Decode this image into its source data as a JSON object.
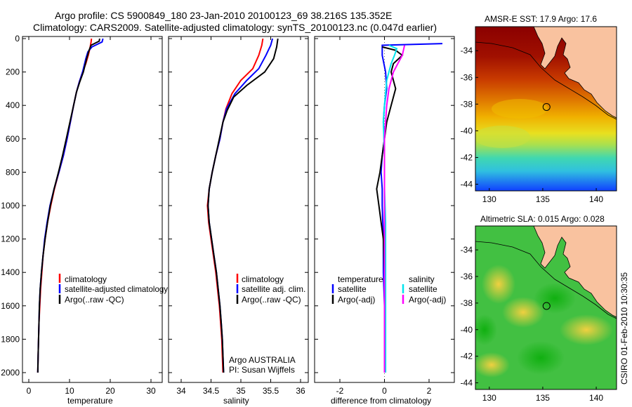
{
  "header": {
    "line1": "Argo profile: CS 5900849_180 23-Jan-2010 20100123_69 38.216S 135.352E",
    "line2": "Climatology: CARS2009. Satellite-adjusted climatology: synTS_20100123.nc (0.047d earlier)"
  },
  "credits": {
    "agency": "Argo AUSTRALIA",
    "pi": "PI: Susan Wijffels",
    "stamp": "CSIRO 01-Feb-2010 10:30:35"
  },
  "colors": {
    "climatology": "#ff0000",
    "satellite": "#0000ff",
    "argo": "#000000",
    "sal_satellite": "#00e5ee",
    "sal_argo": "#ff00ff",
    "land": "#f9c29f",
    "coast": "#000000"
  },
  "chart_data": [
    {
      "type": "line",
      "name": "temperature-profile",
      "xlabel": "temperature",
      "ylabel": "",
      "xlim": [
        -2,
        32
      ],
      "ylim": [
        2060,
        0
      ],
      "xticks": [
        0,
        10,
        20,
        30
      ],
      "yticks": [
        0,
        200,
        400,
        600,
        800,
        1000,
        1200,
        1400,
        1600,
        1800,
        2000
      ],
      "legend": [
        "climatology",
        "satellite-adjusted climatology",
        "Argo(..raw -QC)"
      ],
      "series": [
        {
          "name": "climatology",
          "color": "#ff0000",
          "points": [
            [
              15.4,
              0
            ],
            [
              15.3,
              20
            ],
            [
              15.0,
              60
            ],
            [
              14.6,
              100
            ],
            [
              14.0,
              150
            ],
            [
              13.2,
              200
            ],
            [
              12.4,
              260
            ],
            [
              11.7,
              320
            ],
            [
              11.0,
              400
            ],
            [
              10.2,
              500
            ],
            [
              9.4,
              600
            ],
            [
              8.5,
              700
            ],
            [
              7.4,
              800
            ],
            [
              6.3,
              900
            ],
            [
              5.4,
              1000
            ],
            [
              4.6,
              1100
            ],
            [
              4.0,
              1200
            ],
            [
              3.5,
              1300
            ],
            [
              3.2,
              1400
            ],
            [
              2.9,
              1500
            ],
            [
              2.7,
              1600
            ],
            [
              2.5,
              1700
            ],
            [
              2.4,
              1800
            ],
            [
              2.3,
              1900
            ],
            [
              2.2,
              2000
            ]
          ]
        },
        {
          "name": "satellite-adjusted climatology",
          "color": "#0000ff",
          "points": [
            [
              18.2,
              0
            ],
            [
              18.0,
              20
            ],
            [
              15.5,
              50
            ],
            [
              14.5,
              80
            ],
            [
              14.0,
              120
            ],
            [
              13.2,
              200
            ],
            [
              12.4,
              260
            ],
            [
              11.7,
              320
            ],
            [
              11.0,
              400
            ],
            [
              10.2,
              500
            ],
            [
              9.4,
              600
            ],
            [
              8.5,
              700
            ],
            [
              7.4,
              800
            ],
            [
              6.2,
              900
            ],
            [
              5.2,
              1000
            ],
            [
              4.5,
              1100
            ],
            [
              3.9,
              1200
            ],
            [
              3.5,
              1300
            ],
            [
              3.1,
              1400
            ],
            [
              2.8,
              1500
            ],
            [
              2.6,
              1600
            ],
            [
              2.5,
              1700
            ],
            [
              2.4,
              1800
            ],
            [
              2.3,
              1900
            ],
            [
              2.2,
              2000
            ]
          ]
        },
        {
          "name": "Argo(..raw -QC)",
          "color": "#000000",
          "points": [
            [
              17.4,
              0
            ],
            [
              17.3,
              15
            ],
            [
              15.3,
              40
            ],
            [
              14.8,
              70
            ],
            [
              14.2,
              120
            ],
            [
              13.4,
              200
            ],
            [
              12.5,
              260
            ],
            [
              11.7,
              320
            ],
            [
              11.0,
              400
            ],
            [
              10.1,
              500
            ],
            [
              9.2,
              600
            ],
            [
              8.3,
              700
            ],
            [
              7.3,
              800
            ],
            [
              6.2,
              900
            ],
            [
              5.3,
              1000
            ],
            [
              4.6,
              1100
            ],
            [
              4.0,
              1200
            ],
            [
              3.5,
              1300
            ],
            [
              3.1,
              1400
            ],
            [
              2.8,
              1500
            ],
            [
              2.6,
              1600
            ],
            [
              2.5,
              1700
            ],
            [
              2.4,
              1800
            ],
            [
              2.3,
              1900
            ],
            [
              2.2,
              2000
            ]
          ]
        }
      ]
    },
    {
      "type": "line",
      "name": "salinity-profile",
      "xlabel": "salinity",
      "xlim": [
        33.8,
        36.1
      ],
      "ylim": [
        2060,
        0
      ],
      "xticks": [
        34,
        34.5,
        35,
        35.5,
        36
      ],
      "xticklabels": [
        "34",
        "34.5",
        "35",
        "35.5",
        "36"
      ],
      "legend": [
        "climatology",
        "satellite adj. clim.",
        "Argo(..raw -QC)"
      ],
      "series": [
        {
          "name": "climatology",
          "color": "#ff0000",
          "points": [
            [
              35.37,
              0
            ],
            [
              35.35,
              40
            ],
            [
              35.3,
              100
            ],
            [
              35.2,
              180
            ],
            [
              35.0,
              250
            ],
            [
              34.85,
              330
            ],
            [
              34.75,
              420
            ],
            [
              34.7,
              500
            ],
            [
              34.65,
              600
            ],
            [
              34.58,
              700
            ],
            [
              34.52,
              800
            ],
            [
              34.47,
              900
            ],
            [
              34.44,
              1000
            ],
            [
              34.46,
              1100
            ],
            [
              34.5,
              1200
            ],
            [
              34.54,
              1300
            ],
            [
              34.58,
              1400
            ],
            [
              34.61,
              1500
            ],
            [
              34.64,
              1600
            ],
            [
              34.66,
              1700
            ],
            [
              34.68,
              1800
            ],
            [
              34.69,
              1900
            ],
            [
              34.7,
              2000
            ]
          ]
        },
        {
          "name": "satellite adj. clim.",
          "color": "#0000ff",
          "points": [
            [
              35.53,
              0
            ],
            [
              35.5,
              40
            ],
            [
              35.42,
              100
            ],
            [
              35.3,
              180
            ],
            [
              35.1,
              250
            ],
            [
              34.9,
              330
            ],
            [
              34.76,
              420
            ],
            [
              34.7,
              500
            ],
            [
              34.65,
              600
            ],
            [
              34.58,
              700
            ],
            [
              34.52,
              800
            ],
            [
              34.47,
              900
            ],
            [
              34.45,
              1000
            ],
            [
              34.47,
              1100
            ],
            [
              34.51,
              1200
            ],
            [
              34.55,
              1300
            ],
            [
              34.59,
              1400
            ],
            [
              34.62,
              1500
            ],
            [
              34.65,
              1600
            ],
            [
              34.67,
              1700
            ],
            [
              34.69,
              1800
            ],
            [
              34.7,
              1900
            ],
            [
              34.71,
              2000
            ]
          ]
        },
        {
          "name": "Argo(..raw -QC)",
          "color": "#000000",
          "points": [
            [
              35.62,
              0
            ],
            [
              35.6,
              50
            ],
            [
              35.55,
              120
            ],
            [
              35.4,
              200
            ],
            [
              35.1,
              280
            ],
            [
              34.88,
              350
            ],
            [
              34.77,
              430
            ],
            [
              34.7,
              500
            ],
            [
              34.64,
              600
            ],
            [
              34.58,
              700
            ],
            [
              34.52,
              800
            ],
            [
              34.47,
              900
            ],
            [
              34.45,
              1000
            ],
            [
              34.47,
              1100
            ],
            [
              34.51,
              1200
            ],
            [
              34.55,
              1300
            ],
            [
              34.59,
              1400
            ],
            [
              34.62,
              1500
            ],
            [
              34.65,
              1600
            ],
            [
              34.67,
              1700
            ],
            [
              34.69,
              1800
            ],
            [
              34.7,
              1900
            ],
            [
              34.71,
              2000
            ]
          ]
        }
      ]
    },
    {
      "type": "line",
      "name": "difference-profile",
      "xlabel": "difference from climatology",
      "xlim": [
        -3,
        3
      ],
      "ylim": [
        2060,
        0
      ],
      "xticks": [
        -2,
        0,
        2
      ],
      "legend": {
        "temperature": [
          "temperature",
          "satellite",
          "Argo(-adj)"
        ],
        "salinity": [
          "salinity",
          "satellite",
          "Argo(-adj)"
        ]
      },
      "series": [
        {
          "name": "temperature satellite",
          "color": "#0000ff",
          "points": [
            [
              2.6,
              30
            ],
            [
              -0.1,
              40
            ],
            [
              -0.1,
              100
            ],
            [
              0.05,
              200
            ],
            [
              0.1,
              300
            ],
            [
              0.0,
              400
            ],
            [
              -0.05,
              500
            ],
            [
              0.0,
              600
            ],
            [
              -0.1,
              700
            ],
            [
              -0.15,
              800
            ],
            [
              -0.1,
              900
            ],
            [
              -0.1,
              1000
            ],
            [
              -0.05,
              1200
            ],
            [
              -0.05,
              1400
            ],
            [
              0.0,
              1600
            ],
            [
              0.0,
              1800
            ],
            [
              0.0,
              2000
            ]
          ]
        },
        {
          "name": "temperature Argo(-adj)",
          "color": "#000000",
          "points": [
            [
              -0.1,
              50
            ],
            [
              0.5,
              70
            ],
            [
              0.8,
              100
            ],
            [
              0.4,
              150
            ],
            [
              0.3,
              200
            ],
            [
              0.5,
              300
            ],
            [
              0.3,
              400
            ],
            [
              0.1,
              500
            ],
            [
              0.0,
              600
            ],
            [
              -0.1,
              700
            ],
            [
              -0.2,
              800
            ],
            [
              -0.35,
              900
            ],
            [
              -0.25,
              1000
            ],
            [
              -0.15,
              1100
            ],
            [
              -0.05,
              1200
            ],
            [
              0.0,
              1400
            ],
            [
              0.0,
              1600
            ],
            [
              0.0,
              1800
            ],
            [
              0.0,
              2000
            ]
          ]
        },
        {
          "name": "salinity satellite",
          "color": "#00e5ee",
          "points": [
            [
              0.2,
              40
            ],
            [
              0.55,
              60
            ],
            [
              0.45,
              100
            ],
            [
              0.3,
              150
            ],
            [
              0.1,
              250
            ],
            [
              0.0,
              400
            ],
            [
              -0.05,
              500
            ],
            [
              0.0,
              700
            ],
            [
              0.0,
              900
            ],
            [
              0.05,
              1100
            ],
            [
              0.05,
              1400
            ],
            [
              0.05,
              1700
            ],
            [
              0.05,
              2000
            ]
          ]
        },
        {
          "name": "salinity Argo(-adj)",
          "color": "#ff00ff",
          "points": [
            [
              0.9,
              40
            ],
            [
              0.8,
              100
            ],
            [
              0.6,
              150
            ],
            [
              0.4,
              200
            ],
            [
              0.2,
              300
            ],
            [
              0.1,
              400
            ],
            [
              0.05,
              500
            ],
            [
              0.0,
              600
            ],
            [
              0.0,
              1000
            ],
            [
              0.0,
              1500
            ],
            [
              0.0,
              2000
            ]
          ]
        }
      ]
    },
    {
      "type": "heatmap",
      "name": "sst-map",
      "title": "AMSR-E SST: 17.9 Argo: 17.6",
      "xticks": [
        130,
        135,
        140
      ],
      "yticks": [
        -34,
        -36,
        -38,
        -40,
        -42,
        -44
      ],
      "xlim": [
        128.7,
        141.9
      ],
      "ylim": [
        -44.5,
        -32.2
      ],
      "argo_position": [
        135.352,
        -38.216
      ]
    },
    {
      "type": "heatmap",
      "name": "sla-map",
      "title": "Altimetric SLA: 0.015 Argo: 0.028",
      "xticks": [
        130,
        135,
        140
      ],
      "yticks": [
        -34,
        -36,
        -38,
        -40,
        -42,
        -44
      ],
      "xlim": [
        128.7,
        141.9
      ],
      "ylim": [
        -44.5,
        -32.2
      ],
      "argo_position": [
        135.352,
        -38.216
      ]
    }
  ]
}
